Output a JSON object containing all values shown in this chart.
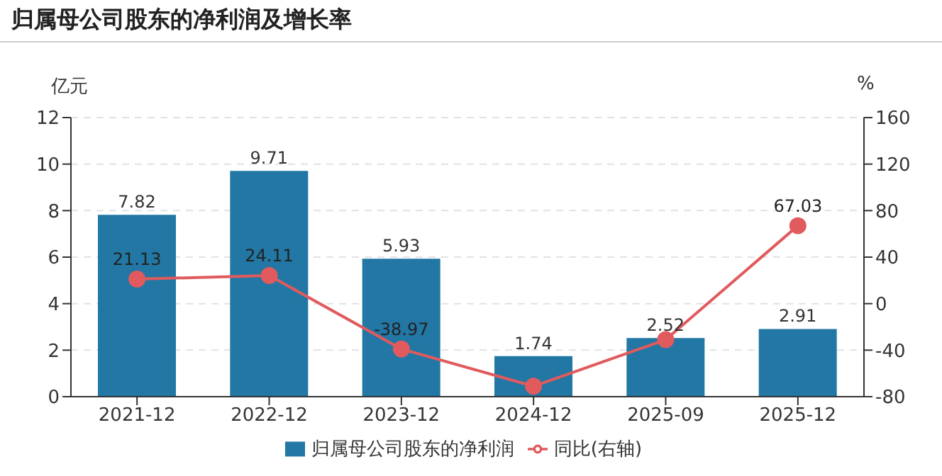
{
  "chart_data": {
    "type": "bar",
    "title": "归属母公司股东的净利润及增长率",
    "ylabel": "亿元",
    "y2label": "%",
    "categories": [
      "2021-12",
      "2022-12",
      "2023-12",
      "2024-12",
      "2025-09",
      "2025-12"
    ],
    "series": [
      {
        "name": "归属母公司股东的净利润",
        "color": "#2277a4",
        "values": [
          7.82,
          9.71,
          5.93,
          1.74,
          2.52,
          2.91
        ],
        "data_labels": true
      },
      {
        "name": "同比(右轴)",
        "type": "line",
        "axis": "y2",
        "color": "#e05a5e",
        "values": [
          21.13,
          24.11,
          -38.97,
          -71,
          -31,
          67.03
        ],
        "value_labels": [
          "21.13",
          "24.11",
          "-38.97",
          null,
          null,
          "67.03"
        ],
        "marker": "circle"
      }
    ],
    "ylim": [
      0,
      12
    ],
    "yticks": [
      0,
      2,
      4,
      6,
      8,
      10,
      12
    ],
    "y2lim": [
      -80,
      160
    ],
    "y2ticks": [
      -80,
      -40,
      0,
      40,
      80,
      120,
      160
    ],
    "grid": "y",
    "legend": "bottom"
  }
}
